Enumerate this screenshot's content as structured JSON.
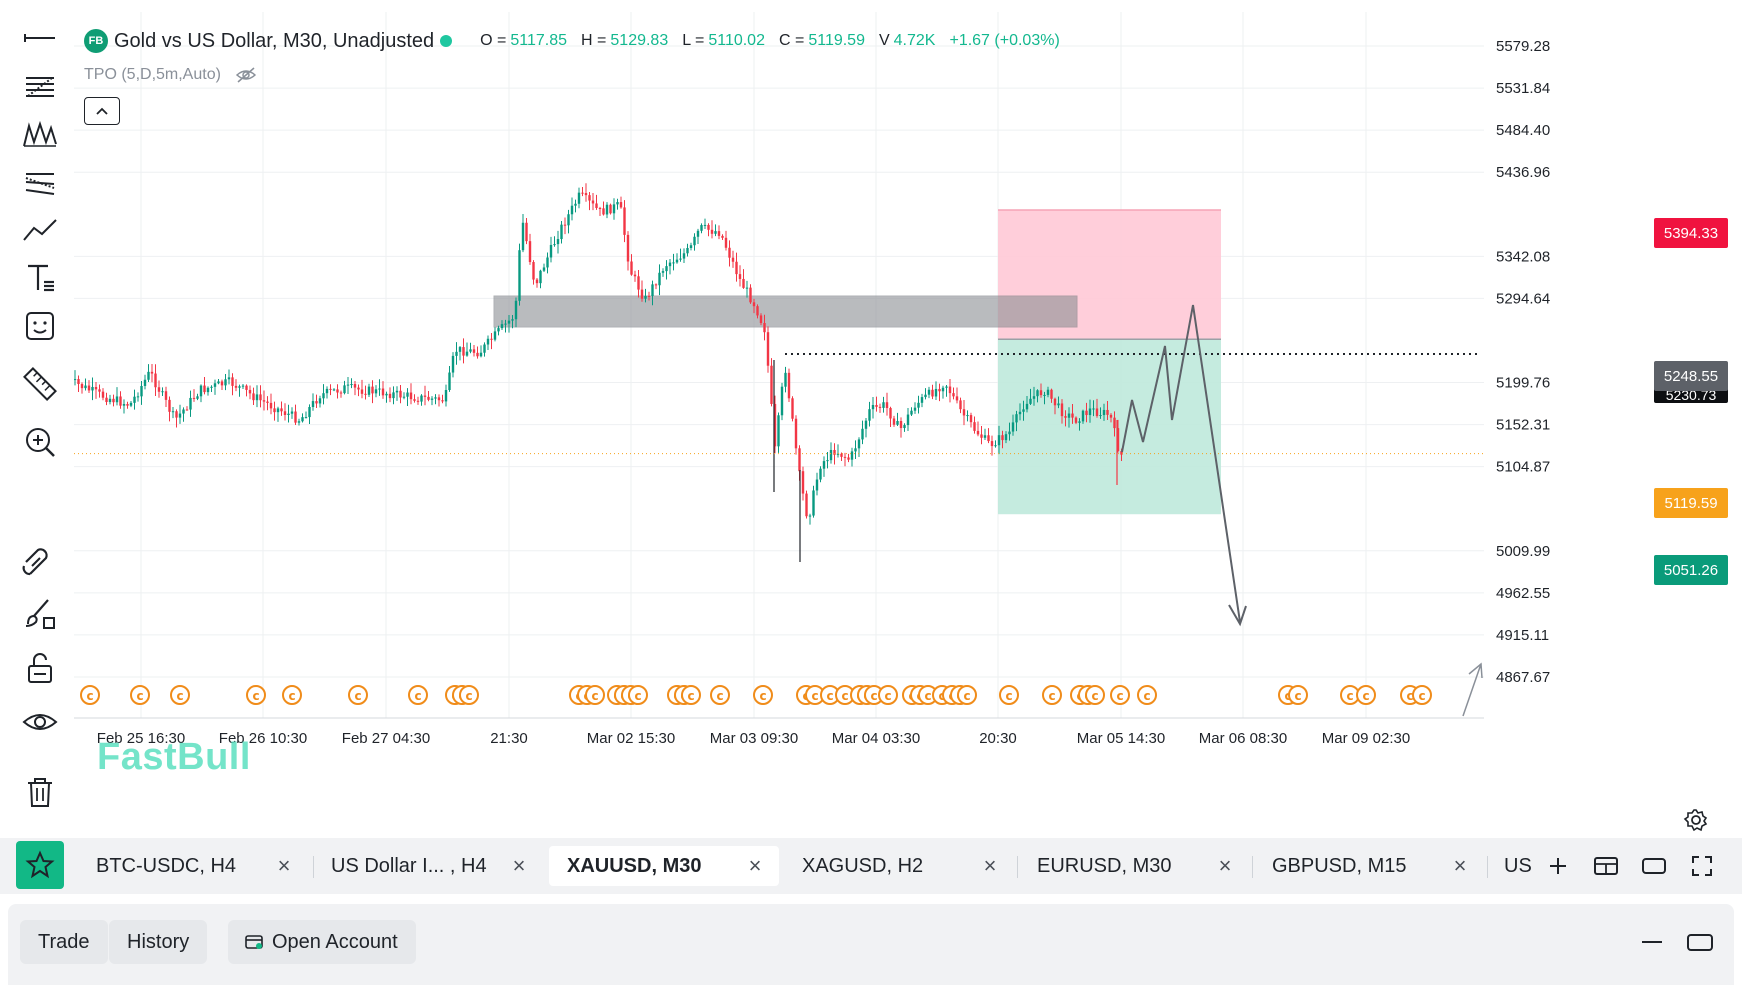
{
  "legend": {
    "logo": "FB",
    "title": "Gold vs US Dollar, M30, Unadjusted",
    "o_label": "O =",
    "o_value": "5117.85",
    "h_label": "H =",
    "h_value": "5129.83",
    "l_label": "L =",
    "l_value": "5110.02",
    "c_label": "C =",
    "c_value": "5119.59",
    "v_label": "V",
    "v_value": "4.72K",
    "change": "+1.67 (+0.03%)"
  },
  "indicator": {
    "label": "TPO (5,D,5m,Auto)"
  },
  "watermark": "FastBull",
  "colors": {
    "up": "#089981",
    "down": "#f23645",
    "accent": "#12b886",
    "stop_zone": "#ffc9d6",
    "target_zone": "#bfe9dc",
    "sell_tag": "#f0133f",
    "target_tag": "#0a9b7a",
    "last_tag": "#f7a21b",
    "entry_tag": "#5d6168"
  },
  "price_scale": [
    "5579.28",
    "5531.84",
    "5484.40",
    "5436.96",
    "5342.08",
    "5294.64",
    "5199.76",
    "5152.31",
    "5104.87",
    "5009.99",
    "4962.55",
    "4915.11",
    "4867.67"
  ],
  "price_tags": {
    "stop": "5394.33",
    "entry": "5248.55",
    "entry_hidden": "5230.73",
    "last": "5119.59",
    "target": "5051.26"
  },
  "time_scale": [
    "Feb 25 16:30",
    "Feb 26 10:30",
    "Feb 27 04:30",
    "21:30",
    "Mar 02 15:30",
    "Mar 03 09:30",
    "Mar 04 03:30",
    "20:30",
    "Mar 05 14:30",
    "Mar 06 08:30",
    "Mar 09 02:30"
  ],
  "event_marker_icon": "copyright-event-icon",
  "tabs": [
    {
      "label": "BTC-USDC, H4",
      "active": false
    },
    {
      "label": "US Dollar I... , H4",
      "active": false
    },
    {
      "label": "XAUUSD, M30",
      "active": true
    },
    {
      "label": "XAGUSD, H2",
      "active": false
    },
    {
      "label": "EURUSD, M30",
      "active": false
    },
    {
      "label": "GBPUSD, M15",
      "active": false
    }
  ],
  "tab_close": "×",
  "tab_us": "US",
  "bottom": {
    "trade": "Trade",
    "history": "History",
    "open_account": "Open Account"
  }
}
